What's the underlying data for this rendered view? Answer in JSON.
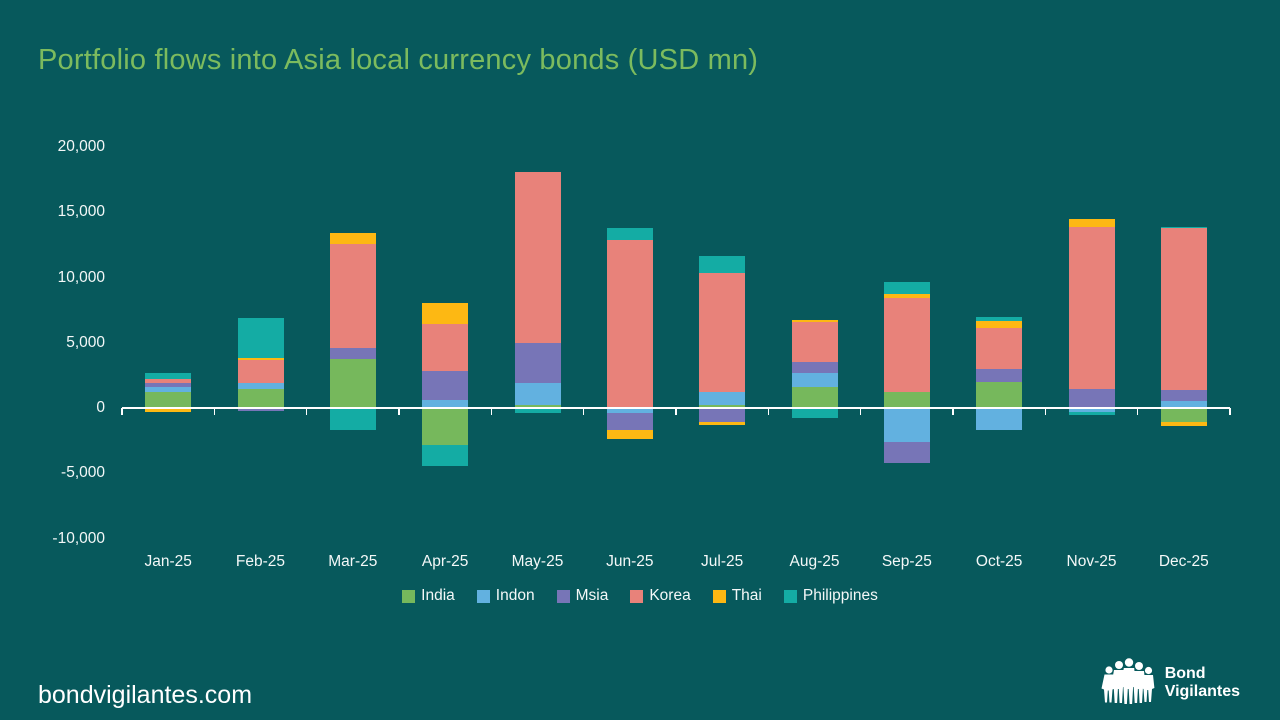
{
  "title": "Portfolio flows into Asia local currency bonds (USD mn)",
  "footer": {
    "website": "bondvigilantes.com",
    "logo_line1": "Bond",
    "logo_line2": "Vigilantes"
  },
  "colors": {
    "background": "#07595C",
    "title_text": "#7CBB5E",
    "axis_text": "#F4F8F8",
    "axis_line": "#FFFFFF"
  },
  "chart_data": {
    "type": "bar",
    "stacked": true,
    "grid": false,
    "legend_position": "bottom",
    "title": "Portfolio flows into Asia local currency bonds (USD mn)",
    "xlabel": "",
    "ylabel": "",
    "ylim": [
      -10000,
      20000
    ],
    "yticks": [
      20000,
      15000,
      10000,
      5000,
      0,
      -5000,
      -10000
    ],
    "categories": [
      "Jan-25",
      "Feb-25",
      "Mar-25",
      "Apr-25",
      "May-25",
      "Jun-25",
      "Jul-25",
      "Aug-25",
      "Sep-25",
      "Oct-25",
      "Nov-25",
      "Dec-25"
    ],
    "series": [
      {
        "name": "India",
        "color": "#76B85C",
        "values": [
          1200,
          1450,
          3750,
          -2800,
          200,
          0,
          250,
          1600,
          1250,
          2000,
          0,
          -1100
        ]
      },
      {
        "name": "Indon",
        "color": "#62B1E0",
        "values": [
          400,
          500,
          0,
          600,
          1700,
          -400,
          1000,
          1100,
          -2600,
          -1700,
          -300,
          550
        ]
      },
      {
        "name": "Msia",
        "color": "#7775B7",
        "values": [
          300,
          -200,
          850,
          2200,
          3100,
          -1250,
          -1100,
          800,
          -1600,
          1000,
          1450,
          800
        ]
      },
      {
        "name": "Korea",
        "color": "#E8827A",
        "values": [
          300,
          1750,
          8000,
          3650,
          13100,
          12900,
          9100,
          3100,
          7200,
          3100,
          12450,
          12450
        ]
      },
      {
        "name": "Thai",
        "color": "#FDB813",
        "values": [
          -300,
          150,
          800,
          1600,
          0,
          -750,
          -200,
          150,
          300,
          550,
          600,
          -300
        ]
      },
      {
        "name": "Philippines",
        "color": "#14ACA4",
        "values": [
          450,
          3050,
          -1650,
          -1650,
          -400,
          900,
          1300,
          -800,
          900,
          350,
          -200,
          100
        ]
      }
    ]
  }
}
